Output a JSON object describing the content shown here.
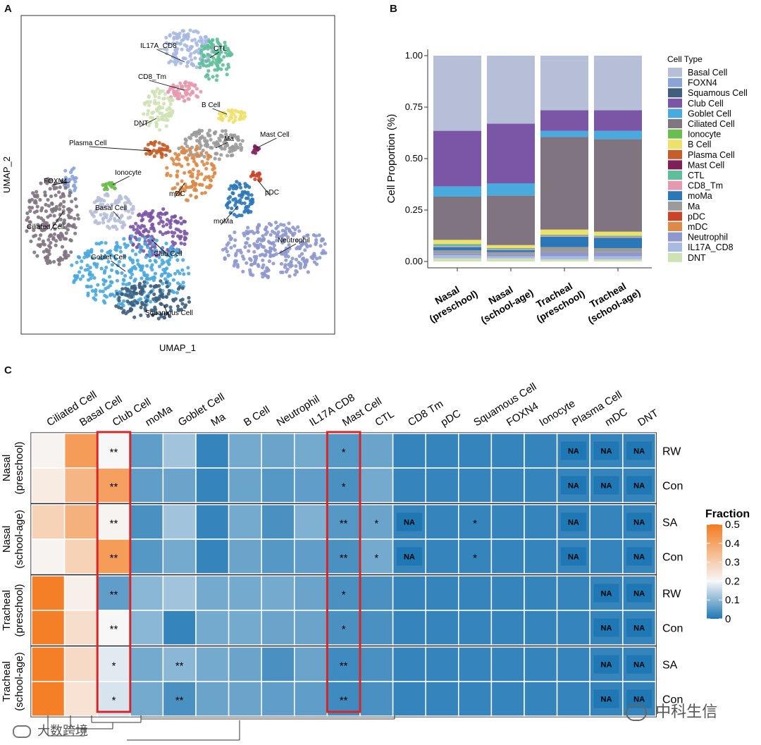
{
  "panels": {
    "a": "A",
    "b": "B",
    "c": "C"
  },
  "umap": {
    "xlabel": "UMAP_1",
    "ylabel": "UMAP_2",
    "clusters": [
      {
        "name": "IL17A_CD8",
        "color": "#a9b9e0"
      },
      {
        "name": "CTL",
        "color": "#5fbf9a"
      },
      {
        "name": "CD8_Tm",
        "color": "#e59aaf"
      },
      {
        "name": "B Cell",
        "color": "#eee16a"
      },
      {
        "name": "DNT",
        "color": "#cfe2b4"
      },
      {
        "name": "Plasma Cell",
        "color": "#c45f2a"
      },
      {
        "name": "Ma",
        "color": "#9b9b9b"
      },
      {
        "name": "Mast Cell",
        "color": "#7e1f5a"
      },
      {
        "name": "FOXN4",
        "color": "#8ca3d8"
      },
      {
        "name": "Ionocyte",
        "color": "#6bbd4f"
      },
      {
        "name": "pDC",
        "color": "#c9452a"
      },
      {
        "name": "mDC",
        "color": "#dc8a47"
      },
      {
        "name": "Basal Cell",
        "color": "#b7bfd8"
      },
      {
        "name": "moMa",
        "color": "#2b78b8"
      },
      {
        "name": "Ciliated Cell",
        "color": "#7f7480"
      },
      {
        "name": "Club Cell",
        "color": "#7b56a6"
      },
      {
        "name": "Neutrophil",
        "color": "#8e98cc"
      },
      {
        "name": "Goblet Cell",
        "color": "#4aa9dd"
      },
      {
        "name": "Squamous Cell",
        "color": "#3f5f7c"
      }
    ]
  },
  "chart_data": [
    {
      "type": "bar",
      "ylabel": "Cell Proportion (%)",
      "ylim": [
        0,
        1
      ],
      "yticks": [
        "0.00",
        "0.25",
        "0.50",
        "0.75",
        "1.00"
      ],
      "categories": [
        [
          "Nasal",
          "(preschool)"
        ],
        [
          "Nasal",
          "(school-age)"
        ],
        [
          "Tracheal",
          "(preschool)"
        ],
        [
          "Tracheal",
          "(school-age)"
        ]
      ],
      "legend_title": "Cell Type",
      "series": [
        {
          "name": "Basal Cell",
          "color": "#b7bfd8",
          "values": [
            0.35,
            0.33,
            0.24,
            0.25
          ]
        },
        {
          "name": "FOXN4",
          "color": "#8ca3d8",
          "values": [
            0.0,
            0.0,
            0.0,
            0.0
          ]
        },
        {
          "name": "Squamous Cell",
          "color": "#3f5f7c",
          "values": [
            0.0,
            0.0,
            0.0,
            0.0
          ]
        },
        {
          "name": "Club Cell",
          "color": "#7b56a6",
          "values": [
            0.27,
            0.29,
            0.1,
            0.1
          ]
        },
        {
          "name": "Goblet Cell",
          "color": "#4aa9dd",
          "values": [
            0.05,
            0.06,
            0.03,
            0.04
          ]
        },
        {
          "name": "Ciliated Cell",
          "color": "#7f7480",
          "values": [
            0.21,
            0.24,
            0.45,
            0.45
          ]
        },
        {
          "name": "Ionocyte",
          "color": "#6bbd4f",
          "values": [
            0.0,
            0.0,
            0.0,
            0.0
          ]
        },
        {
          "name": "B Cell",
          "color": "#eee16a",
          "values": [
            0.02,
            0.015,
            0.025,
            0.02
          ]
        },
        {
          "name": "Plasma Cell",
          "color": "#c45f2a",
          "values": [
            0.0,
            0.0,
            0.0,
            0.0
          ]
        },
        {
          "name": "Mast Cell",
          "color": "#7e1f5a",
          "values": [
            0.0,
            0.0,
            0.0,
            0.0
          ]
        },
        {
          "name": "CTL",
          "color": "#5fbf9a",
          "values": [
            0.01,
            0.005,
            0.005,
            0.005
          ]
        },
        {
          "name": "CD8_Tm",
          "color": "#e59aaf",
          "values": [
            0.005,
            0.005,
            0.005,
            0.005
          ]
        },
        {
          "name": "moMa",
          "color": "#2b78b8",
          "values": [
            0.015,
            0.01,
            0.05,
            0.05
          ]
        },
        {
          "name": "Ma",
          "color": "#9b9b9b",
          "values": [
            0.015,
            0.01,
            0.025,
            0.02
          ]
        },
        {
          "name": "pDC",
          "color": "#c9452a",
          "values": [
            0.0,
            0.0,
            0.0,
            0.0
          ]
        },
        {
          "name": "mDC",
          "color": "#dc8a47",
          "values": [
            0.0,
            0.0,
            0.0,
            0.0
          ]
        },
        {
          "name": "Neutrophil",
          "color": "#8e98cc",
          "values": [
            0.01,
            0.01,
            0.02,
            0.02
          ]
        },
        {
          "name": "IL17A_CD8",
          "color": "#a9b9e0",
          "values": [
            0.015,
            0.01,
            0.015,
            0.015
          ]
        },
        {
          "name": "DNT",
          "color": "#cfe2b4",
          "values": [
            0.015,
            0.015,
            0.01,
            0.01
          ]
        }
      ]
    },
    {
      "type": "heatmap",
      "columns": [
        "Ciliated Cell",
        "Basal Cell",
        "Club Cell",
        "moMa",
        "Goblet Cell",
        "Ma",
        "B Cell",
        "Neutrophil",
        "IL17A CD8",
        "Mast Cell",
        "CTL",
        "CD8 Tm",
        "pDC",
        "Squamous Cell",
        "FOXN4",
        "Ionocyte",
        "Plasma Cell",
        "mDC",
        "DNT"
      ],
      "groups": [
        {
          "name": [
            "Nasal",
            "(preschool)"
          ],
          "rows": [
            "RW",
            "Con"
          ]
        },
        {
          "name": [
            "Nasal",
            "(school-age)"
          ],
          "rows": [
            "SA",
            "Con"
          ]
        },
        {
          "name": [
            "Tracheal",
            "(preschool)"
          ],
          "rows": [
            "RW",
            "Con"
          ]
        },
        {
          "name": [
            "Tracheal",
            "(school-age)"
          ],
          "rows": [
            "SA",
            "Con"
          ]
        }
      ],
      "values": [
        [
          0.21,
          0.42,
          0.2,
          0.06,
          0.12,
          0.02,
          0.08,
          0.07,
          0.08,
          0.05,
          0.07,
          0.02,
          0.02,
          0.02,
          0.02,
          0.02,
          0.02,
          0.02,
          0.02
        ],
        [
          0.23,
          0.36,
          0.41,
          0.06,
          0.07,
          0.02,
          0.07,
          0.05,
          0.06,
          0.04,
          0.08,
          0.02,
          0.02,
          0.02,
          0.02,
          0.02,
          0.02,
          0.02,
          0.02
        ],
        [
          0.29,
          0.37,
          0.21,
          0.04,
          0.12,
          0.02,
          0.08,
          0.04,
          0.09,
          0.05,
          0.07,
          0.02,
          0.02,
          0.02,
          0.02,
          0.02,
          0.02,
          0.02,
          0.02
        ],
        [
          0.21,
          0.29,
          0.42,
          0.05,
          0.08,
          0.02,
          0.07,
          0.05,
          0.06,
          0.04,
          0.08,
          0.02,
          0.02,
          0.02,
          0.02,
          0.02,
          0.02,
          0.02,
          0.02
        ],
        [
          0.49,
          0.22,
          0.06,
          0.1,
          0.12,
          0.08,
          0.08,
          0.08,
          0.07,
          0.04,
          0.04,
          0.02,
          0.02,
          0.02,
          0.02,
          0.02,
          0.02,
          0.02,
          0.02
        ],
        [
          0.49,
          0.26,
          0.2,
          0.1,
          0.02,
          0.08,
          0.08,
          0.07,
          0.07,
          0.04,
          0.04,
          0.02,
          0.02,
          0.02,
          0.02,
          0.02,
          0.02,
          0.02,
          0.02
        ],
        [
          0.49,
          0.27,
          0.18,
          0.08,
          0.1,
          0.08,
          0.07,
          0.04,
          0.07,
          0.03,
          0.04,
          0.02,
          0.02,
          0.02,
          0.02,
          0.02,
          0.02,
          0.02,
          0.02
        ],
        [
          0.49,
          0.25,
          0.17,
          0.08,
          0.04,
          0.07,
          0.07,
          0.06,
          0.06,
          0.03,
          0.04,
          0.02,
          0.02,
          0.02,
          0.02,
          0.02,
          0.02,
          0.02,
          0.02
        ]
      ],
      "annotations": [
        {
          "row": 0,
          "col": 2,
          "text": "**"
        },
        {
          "row": 0,
          "col": 9,
          "text": "*"
        },
        {
          "row": 0,
          "col": 16,
          "text": "NA"
        },
        {
          "row": 0,
          "col": 17,
          "text": "NA"
        },
        {
          "row": 0,
          "col": 18,
          "text": "NA"
        },
        {
          "row": 1,
          "col": 2,
          "text": "**"
        },
        {
          "row": 1,
          "col": 9,
          "text": "*"
        },
        {
          "row": 1,
          "col": 16,
          "text": "NA"
        },
        {
          "row": 1,
          "col": 17,
          "text": "NA"
        },
        {
          "row": 1,
          "col": 18,
          "text": "NA"
        },
        {
          "row": 2,
          "col": 2,
          "text": "**"
        },
        {
          "row": 2,
          "col": 9,
          "text": "**"
        },
        {
          "row": 2,
          "col": 10,
          "text": "*"
        },
        {
          "row": 2,
          "col": 11,
          "text": "NA"
        },
        {
          "row": 2,
          "col": 13,
          "text": "*"
        },
        {
          "row": 2,
          "col": 16,
          "text": "NA"
        },
        {
          "row": 2,
          "col": 18,
          "text": "NA"
        },
        {
          "row": 3,
          "col": 2,
          "text": "**"
        },
        {
          "row": 3,
          "col": 9,
          "text": "**"
        },
        {
          "row": 3,
          "col": 10,
          "text": "*"
        },
        {
          "row": 3,
          "col": 11,
          "text": "NA"
        },
        {
          "row": 3,
          "col": 13,
          "text": "*"
        },
        {
          "row": 3,
          "col": 16,
          "text": "NA"
        },
        {
          "row": 3,
          "col": 18,
          "text": "NA"
        },
        {
          "row": 4,
          "col": 2,
          "text": "**"
        },
        {
          "row": 4,
          "col": 9,
          "text": "*"
        },
        {
          "row": 4,
          "col": 17,
          "text": "NA"
        },
        {
          "row": 4,
          "col": 18,
          "text": "NA"
        },
        {
          "row": 5,
          "col": 2,
          "text": "**"
        },
        {
          "row": 5,
          "col": 9,
          "text": "*"
        },
        {
          "row": 5,
          "col": 17,
          "text": "NA"
        },
        {
          "row": 5,
          "col": 18,
          "text": "NA"
        },
        {
          "row": 6,
          "col": 2,
          "text": "*"
        },
        {
          "row": 6,
          "col": 4,
          "text": "**"
        },
        {
          "row": 6,
          "col": 9,
          "text": "**"
        },
        {
          "row": 6,
          "col": 17,
          "text": "NA"
        },
        {
          "row": 6,
          "col": 18,
          "text": "NA"
        },
        {
          "row": 7,
          "col": 2,
          "text": "*"
        },
        {
          "row": 7,
          "col": 4,
          "text": "**"
        },
        {
          "row": 7,
          "col": 9,
          "text": "**"
        },
        {
          "row": 7,
          "col": 17,
          "text": "NA"
        },
        {
          "row": 7,
          "col": 18,
          "text": "NA"
        }
      ],
      "highlighted_columns": [
        "Club Cell",
        "Mast Cell"
      ],
      "colorbar": {
        "title": "Fraction",
        "ticks": [
          "0",
          "0.1",
          "0.2",
          "0.3",
          "0.4",
          "0.5"
        ],
        "range": [
          0,
          0.5
        ],
        "low": "#1f77b4",
        "mid": "#f7f7f7",
        "high": "#f47b20"
      }
    }
  ],
  "watermarks": {
    "left": "大数跨境",
    "right": "中科生信"
  }
}
